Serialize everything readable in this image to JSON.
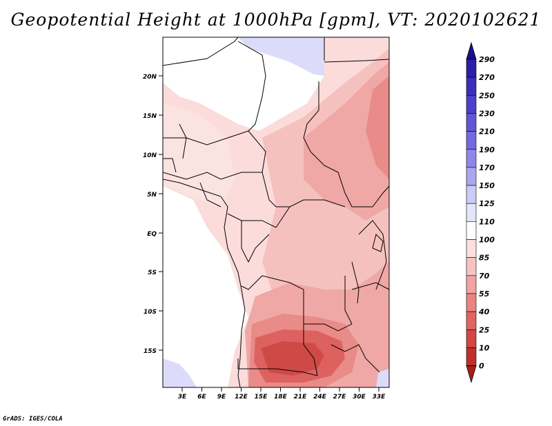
{
  "title": "Geopotential Height at 1000hPa [gpm], VT: 2020102621",
  "credit": "GrADS: IGES/COLA",
  "map": {
    "lat_labels": [
      "20N",
      "15N",
      "10N",
      "5N",
      "EQ",
      "5S",
      "10S",
      "15S"
    ],
    "lon_labels": [
      "3E",
      "6E",
      "9E",
      "12E",
      "15E",
      "18E",
      "21E",
      "24E",
      "27E",
      "30E",
      "33E"
    ]
  },
  "colorbar": {
    "levels": [
      "290",
      "270",
      "250",
      "230",
      "210",
      "190",
      "170",
      "150",
      "125",
      "110",
      "100",
      "85",
      "70",
      "55",
      "40",
      "25",
      "10",
      "0"
    ],
    "colors": [
      "#1a0f8c",
      "#2a1fa6",
      "#3a30b8",
      "#4a42c8",
      "#5e57d6",
      "#7469e0",
      "#8e86e8",
      "#aca6f0",
      "#cccbf5",
      "#e4e4fa",
      "#ffffff",
      "#fbe0df",
      "#f6c3c1",
      "#f0a3a0",
      "#e98381",
      "#e06461",
      "#d44642",
      "#c0302b",
      "#a71f1b"
    ]
  }
}
